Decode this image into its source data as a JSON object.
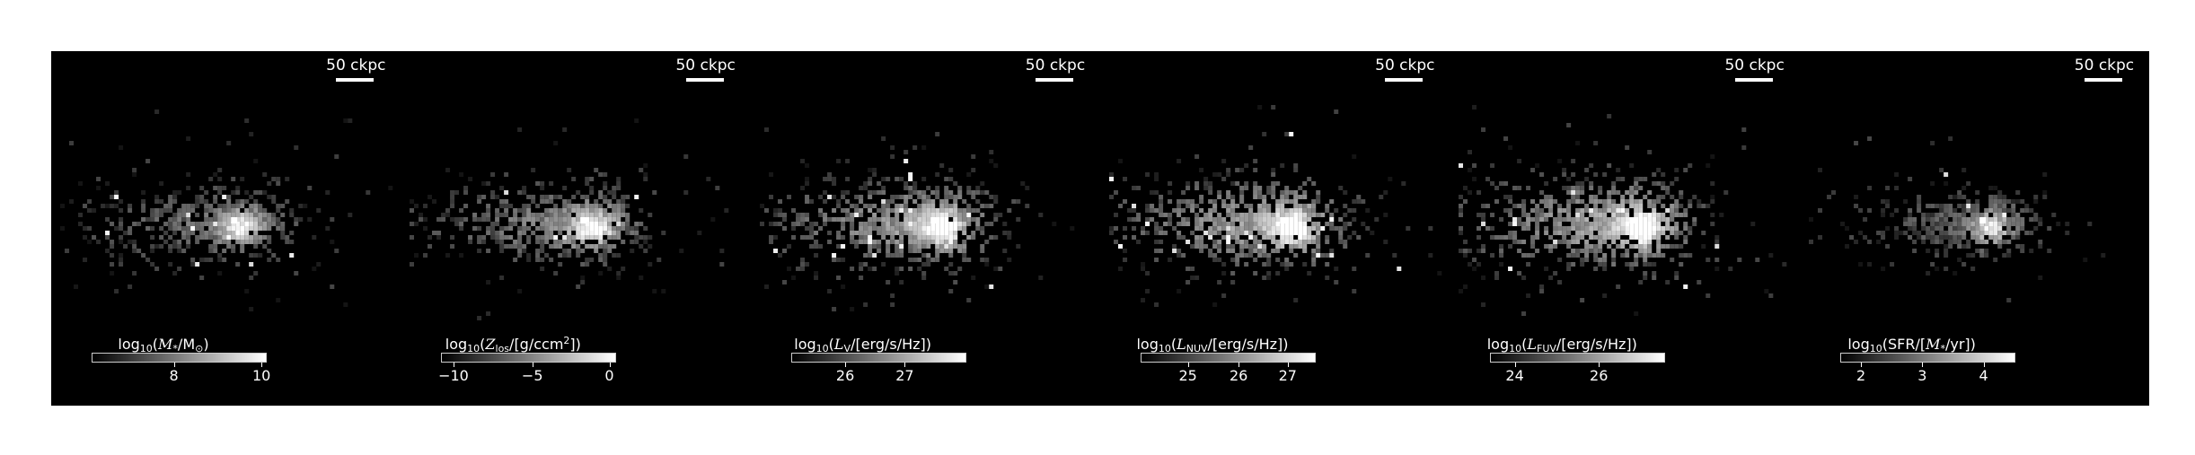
{
  "panels": [
    {
      "scalebar": "50 ckpc",
      "label_pre": "log",
      "label_sub": "10",
      "label_open": "(",
      "label_sym": "M",
      "label_sym_sub": "*",
      "label_rest": "/M",
      "label_rest_sub": "⊙",
      "label_sup": "",
      "label_close": ")",
      "ticks": [
        {
          "label": "8",
          "frac": 0.47
        },
        {
          "label": "10",
          "frac": 0.97
        }
      ],
      "brightness": 0.55,
      "peak": 1.0
    },
    {
      "scalebar": "50 ckpc",
      "label_pre": "log",
      "label_sub": "10",
      "label_open": "(",
      "label_sym": "Z",
      "label_sym_sub": "los",
      "label_rest": "/[g/ccm",
      "label_rest_sub": "",
      "label_sup": "2",
      "label_close": "])",
      "ticks": [
        {
          "label": "−10",
          "frac": 0.07
        },
        {
          "label": "−5",
          "frac": 0.52
        },
        {
          "label": "0",
          "frac": 0.96
        }
      ],
      "brightness": 0.7,
      "peak": 1.0
    },
    {
      "scalebar": "50 ckpc",
      "label_pre": "log",
      "label_sub": "10",
      "label_open": "(",
      "label_sym": "L",
      "label_sym_sub": "V",
      "label_rest": "/[erg/s/Hz]",
      "label_rest_sub": "",
      "label_sup": "",
      "label_close": ")",
      "ticks": [
        {
          "label": "26",
          "frac": 0.31
        },
        {
          "label": "27",
          "frac": 0.65
        }
      ],
      "brightness": 0.85,
      "peak": 1.0
    },
    {
      "scalebar": "50 ckpc",
      "label_pre": "log",
      "label_sub": "10",
      "label_open": "(",
      "label_sym": "L",
      "label_sym_sub": "NUV",
      "label_rest": "/[erg/s/Hz]",
      "label_rest_sub": "",
      "label_sup": "",
      "label_close": ")",
      "ticks": [
        {
          "label": "25",
          "frac": 0.27
        },
        {
          "label": "26",
          "frac": 0.56
        },
        {
          "label": "27",
          "frac": 0.84
        }
      ],
      "brightness": 0.9,
      "peak": 1.0
    },
    {
      "scalebar": "50 ckpc",
      "label_pre": "log",
      "label_sub": "10",
      "label_open": "(",
      "label_sym": "L",
      "label_sym_sub": "FUV",
      "label_rest": "/[erg/s/Hz]",
      "label_rest_sub": "",
      "label_sup": "",
      "label_close": ")",
      "ticks": [
        {
          "label": "24",
          "frac": 0.14
        },
        {
          "label": "26",
          "frac": 0.62
        }
      ],
      "brightness": 0.95,
      "peak": 1.0
    },
    {
      "scalebar": "50 ckpc",
      "label_pre": "log",
      "label_sub": "10",
      "label_open": "(SFR/[",
      "label_sym": "M",
      "label_sym_sub": "*",
      "label_rest": "/yr]",
      "label_rest_sub": "",
      "label_sup": "",
      "label_close": ")",
      "ticks": [
        {
          "label": "2",
          "frac": 0.12
        },
        {
          "label": "3",
          "frac": 0.47
        },
        {
          "label": "4",
          "frac": 0.82
        }
      ],
      "brightness": 0.4,
      "peak": 1.0
    }
  ]
}
